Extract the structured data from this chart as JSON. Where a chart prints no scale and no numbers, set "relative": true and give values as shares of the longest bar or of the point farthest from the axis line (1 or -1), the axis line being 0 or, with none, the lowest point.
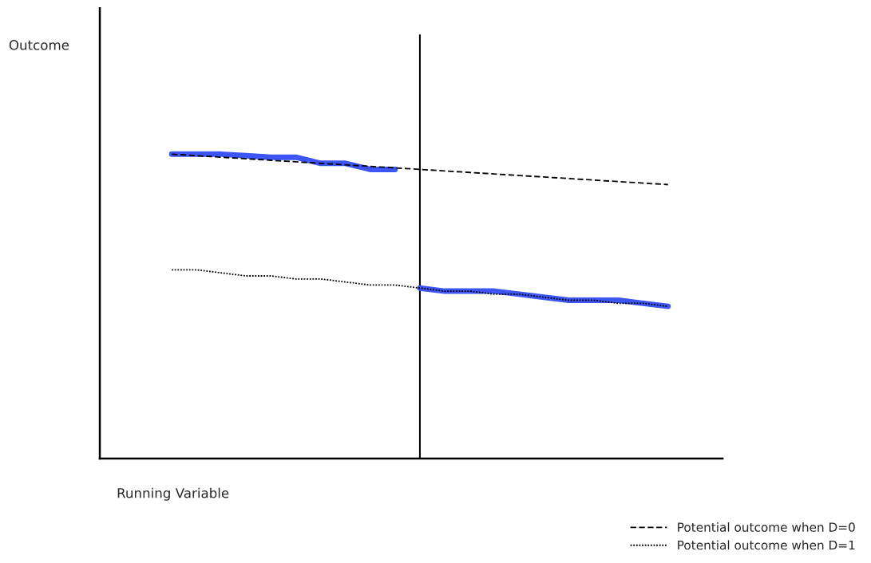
{
  "chart_data": {
    "type": "line",
    "relative": true,
    "xlabel": "Running Variable",
    "annotations": [
      "Outcome"
    ],
    "categories": [
      null,
      null,
      null,
      null,
      null,
      null,
      null,
      null,
      null,
      null,
      null,
      null,
      null,
      null,
      null,
      null,
      null,
      null,
      null,
      null,
      null
    ],
    "series": [
      {
        "name": "Potential outcome when D=0",
        "color": "#000000",
        "line_style": "dashed",
        "values": [
          1.0,
          0.995,
          0.99,
          0.985,
          0.98,
          0.975,
          0.97,
          0.965,
          0.96,
          0.955,
          0.95,
          0.945,
          0.94,
          0.935,
          0.93,
          0.925,
          0.92,
          0.915,
          0.91,
          0.905,
          0.9
        ]
      },
      {
        "name": "Potential outcome when D=1",
        "color": "#000000",
        "line_style": "dotted",
        "values": [
          0.62,
          0.62,
          0.61,
          0.6,
          0.6,
          0.59,
          0.59,
          0.58,
          0.57,
          0.57,
          0.56,
          0.55,
          0.55,
          0.54,
          0.54,
          0.53,
          0.52,
          0.52,
          0.51,
          0.51,
          0.5
        ]
      },
      {
        "color": "#3d55f5",
        "line_style": "solid",
        "values": [
          1.0,
          1.0,
          1.0,
          0.995,
          0.99,
          0.99,
          0.97,
          0.97,
          0.95,
          0.95,
          null,
          null,
          null,
          null,
          null,
          null,
          null,
          null,
          null,
          null,
          null
        ]
      },
      {
        "color": "#3d55f5",
        "line_style": "solid",
        "values": [
          null,
          null,
          null,
          null,
          null,
          null,
          null,
          null,
          null,
          null,
          0.56,
          0.55,
          0.55,
          0.55,
          0.54,
          0.53,
          0.52,
          0.52,
          0.52,
          0.51,
          0.5
        ]
      }
    ],
    "legend": "bottom right"
  }
}
